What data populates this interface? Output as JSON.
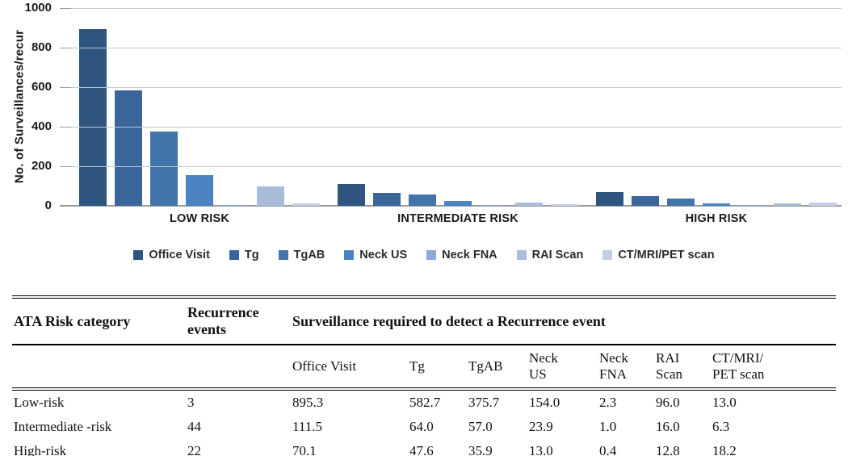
{
  "chart_data": {
    "type": "bar",
    "title": "",
    "ylabel": "No. of Surveillances/recur",
    "xlabel": "",
    "categories": [
      "LOW RISK",
      "INTERMEDIATE RISK",
      "HIGH RISK"
    ],
    "series": [
      {
        "name": "Office Visit",
        "values": [
          895.3,
          111.5,
          70.1
        ]
      },
      {
        "name": "Tg",
        "values": [
          582.7,
          64.0,
          47.6
        ]
      },
      {
        "name": "TgAB",
        "values": [
          375.7,
          57.0,
          35.9
        ]
      },
      {
        "name": "Neck US",
        "values": [
          154.0,
          23.9,
          13.0
        ]
      },
      {
        "name": "Neck FNA",
        "values": [
          2.3,
          1.0,
          0.4
        ]
      },
      {
        "name": "RAI Scan",
        "values": [
          96.0,
          16.0,
          12.8
        ]
      },
      {
        "name": "CT/MRI/PET scan",
        "values": [
          13.0,
          6.3,
          18.2
        ]
      }
    ],
    "colors": [
      "#2e5480",
      "#3a659a",
      "#4273a9",
      "#4b82c1",
      "#8fa9d6",
      "#a9bcda",
      "#c3cfe6"
    ],
    "ylim": [
      0,
      1000
    ],
    "yticks": [
      0,
      200,
      400,
      600,
      800,
      1000
    ],
    "grid": true,
    "legend_position": "bottom"
  },
  "table": {
    "header": {
      "risk_category": "ATA Risk category",
      "recurrence_events": "Recurrence\nevents",
      "surveillance_span": "Surveillance required to detect a Recurrence event"
    },
    "columns": [
      "Office Visit",
      "Tg",
      "TgAB",
      "Neck\nUS",
      "Neck\nFNA",
      "RAI\nScan",
      "CT/MRI/\nPET scan"
    ],
    "rows": [
      {
        "category": "Low-risk",
        "events": "3",
        "values": [
          "895.3",
          "582.7",
          "375.7",
          "154.0",
          "2.3",
          "96.0",
          "13.0"
        ]
      },
      {
        "category": "Intermediate -risk",
        "events": "44",
        "values": [
          "111.5",
          "64.0",
          "57.0",
          "23.9",
          "1.0",
          "16.0",
          "6.3"
        ]
      },
      {
        "category": "High-risk",
        "events": "22",
        "values": [
          "70.1",
          "47.6",
          "35.9",
          "13.0",
          "0.4",
          "12.8",
          "18.2"
        ]
      }
    ]
  }
}
